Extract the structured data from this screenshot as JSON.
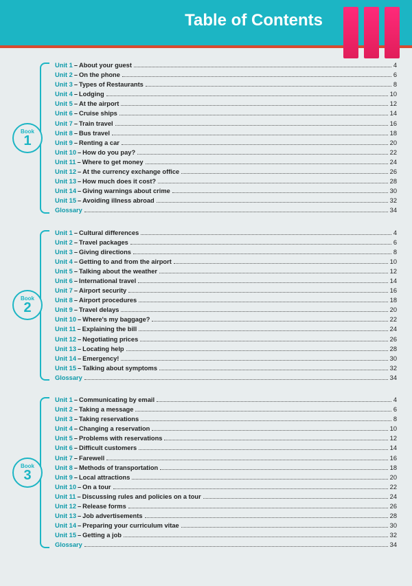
{
  "title": "Table of Contents",
  "colors": {
    "header_bg": "#1cb5c4",
    "header_border": "#d94a2f",
    "bar_gradient_top": "#ff2a7a",
    "bar_gradient_bottom": "#e11e5a",
    "page_bg": "#e8edee",
    "accent": "#0f9aaa",
    "text": "#222222"
  },
  "bookLabel": "Book",
  "books": [
    {
      "number": "1",
      "rows": [
        {
          "unit": "Unit 1",
          "title": "About your guest",
          "page": "4"
        },
        {
          "unit": "Unit 2",
          "title": "On the phone",
          "page": "6"
        },
        {
          "unit": "Unit 3",
          "title": "Types of Restaurants",
          "page": "8"
        },
        {
          "unit": "Unit 4",
          "title": "Lodging",
          "page": "10"
        },
        {
          "unit": "Unit 5",
          "title": "At the airport",
          "page": "12"
        },
        {
          "unit": "Unit 6",
          "title": "Cruise ships",
          "page": "14"
        },
        {
          "unit": "Unit 7",
          "title": "Train travel",
          "page": "16"
        },
        {
          "unit": "Unit 8",
          "title": "Bus travel",
          "page": "18"
        },
        {
          "unit": "Unit 9",
          "title": "Renting a car",
          "page": "20"
        },
        {
          "unit": "Unit 10",
          "title": "How do you pay?",
          "page": "22"
        },
        {
          "unit": "Unit 11",
          "title": "Where to get money",
          "page": "24"
        },
        {
          "unit": "Unit 12",
          "title": "At the currency exchange office",
          "page": "26"
        },
        {
          "unit": "Unit 13",
          "title": "How much does it cost?",
          "page": "28"
        },
        {
          "unit": "Unit 14",
          "title": "Giving warnings about crime",
          "page": "30"
        },
        {
          "unit": "Unit 15",
          "title": "Avoiding illness abroad",
          "page": "32"
        },
        {
          "unit": "Glossary",
          "title": "",
          "page": "34"
        }
      ]
    },
    {
      "number": "2",
      "rows": [
        {
          "unit": "Unit 1",
          "title": "Cultural differences",
          "page": "4"
        },
        {
          "unit": "Unit 2",
          "title": "Travel packages",
          "page": "6"
        },
        {
          "unit": "Unit 3",
          "title": "Giving directions",
          "page": "8"
        },
        {
          "unit": "Unit 4",
          "title": "Getting to and from the airport",
          "page": "10"
        },
        {
          "unit": "Unit 5",
          "title": "Talking about the weather",
          "page": "12"
        },
        {
          "unit": "Unit 6",
          "title": "International travel",
          "page": "14"
        },
        {
          "unit": "Unit 7",
          "title": "Airport security",
          "page": "16"
        },
        {
          "unit": "Unit 8",
          "title": "Airport procedures",
          "page": "18"
        },
        {
          "unit": "Unit 9",
          "title": "Travel delays",
          "page": "20"
        },
        {
          "unit": "Unit 10",
          "title": "Where's my baggage?",
          "page": "22"
        },
        {
          "unit": "Unit 11",
          "title": "Explaining the bill",
          "page": "24"
        },
        {
          "unit": "Unit 12",
          "title": "Negotiating prices",
          "page": "26"
        },
        {
          "unit": "Unit 13",
          "title": "Locating help",
          "page": "28"
        },
        {
          "unit": "Unit 14",
          "title": "Emergency!",
          "page": "30"
        },
        {
          "unit": "Unit 15",
          "title": "Talking about symptoms",
          "page": "32"
        },
        {
          "unit": "Glossary",
          "title": "",
          "page": "34"
        }
      ]
    },
    {
      "number": "3",
      "rows": [
        {
          "unit": "Unit 1",
          "title": "Communicating by email",
          "page": "4"
        },
        {
          "unit": "Unit 2",
          "title": "Taking a message",
          "page": "6"
        },
        {
          "unit": "Unit 3",
          "title": "Taking reservations",
          "page": "8"
        },
        {
          "unit": "Unit 4",
          "title": "Changing a reservation",
          "page": "10"
        },
        {
          "unit": "Unit 5",
          "title": "Problems with reservations",
          "page": "12"
        },
        {
          "unit": "Unit 6",
          "title": "Difficult customers",
          "page": "14"
        },
        {
          "unit": "Unit 7",
          "title": "Farewell",
          "page": "16"
        },
        {
          "unit": "Unit 8",
          "title": "Methods of transportation",
          "page": "18"
        },
        {
          "unit": "Unit 9",
          "title": "Local attractions",
          "page": "20"
        },
        {
          "unit": "Unit 10",
          "title": "On a tour",
          "page": "22"
        },
        {
          "unit": "Unit 11",
          "title": "Discussing rules and policies on a tour",
          "page": "24"
        },
        {
          "unit": "Unit 12",
          "title": "Release forms",
          "page": "26"
        },
        {
          "unit": "Unit 13",
          "title": "Job advertisements",
          "page": "28"
        },
        {
          "unit": "Unit 14",
          "title": "Preparing your curriculum vitae",
          "page": "30"
        },
        {
          "unit": "Unit 15",
          "title": "Getting a job",
          "page": "32"
        },
        {
          "unit": "Glossary",
          "title": "",
          "page": "34"
        }
      ]
    }
  ]
}
